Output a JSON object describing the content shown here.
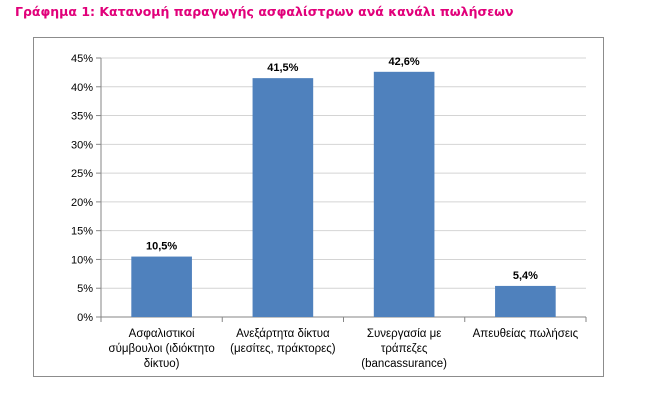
{
  "page": {
    "heading": "Γράφημα 1: Κατανομή παραγωγής ασφαλίστρων ανά κανάλι πωλήσεων"
  },
  "colors": {
    "heading": "#e1007a",
    "bar": "#4f81bd",
    "axis": "#868686",
    "gridline": "#d4d4d4",
    "frame": "#8c8c8c",
    "text": "#000000"
  },
  "chart_data": {
    "type": "bar",
    "categories": [
      [
        "Ασφαλιστικοί",
        "σύμβουλοι (ιδιόκτητο",
        "δίκτυο)"
      ],
      [
        "Ανεξάρτητα δίκτυα",
        "(μεσίτες, πράκτορες)"
      ],
      [
        "Συνεργασία με",
        "τράπεζες",
        "(bancassurance)"
      ],
      [
        "Απευθείας πωλήσεις"
      ]
    ],
    "values": [
      10.5,
      41.5,
      42.6,
      5.4
    ],
    "value_labels": [
      "10,5%",
      "41,5%",
      "42,6%",
      "5,4%"
    ],
    "yticks": [
      "0%",
      "5%",
      "10%",
      "15%",
      "20%",
      "25%",
      "30%",
      "35%",
      "40%",
      "45%"
    ],
    "ylim": [
      0,
      45
    ],
    "ytick_step": 5,
    "title": "",
    "xlabel": "",
    "ylabel": "",
    "legend": "none",
    "grid": true
  }
}
